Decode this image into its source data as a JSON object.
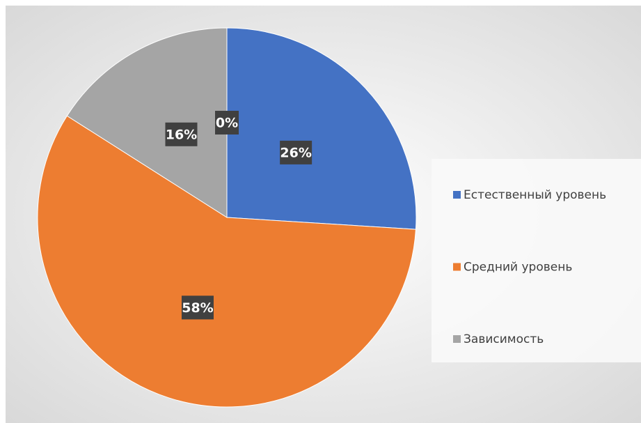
{
  "chart_data": {
    "type": "pie",
    "categories": [
      "Естественный уровень",
      "Средний уровень",
      "Зависимость",
      null
    ],
    "values": [
      26,
      58,
      16,
      0
    ],
    "value_labels": [
      "26%",
      "58%",
      "16%",
      "0%"
    ],
    "colors": [
      "#4472c4",
      "#ed7d31",
      "#a5a5a5",
      "#ffc000"
    ],
    "legend": "right"
  }
}
